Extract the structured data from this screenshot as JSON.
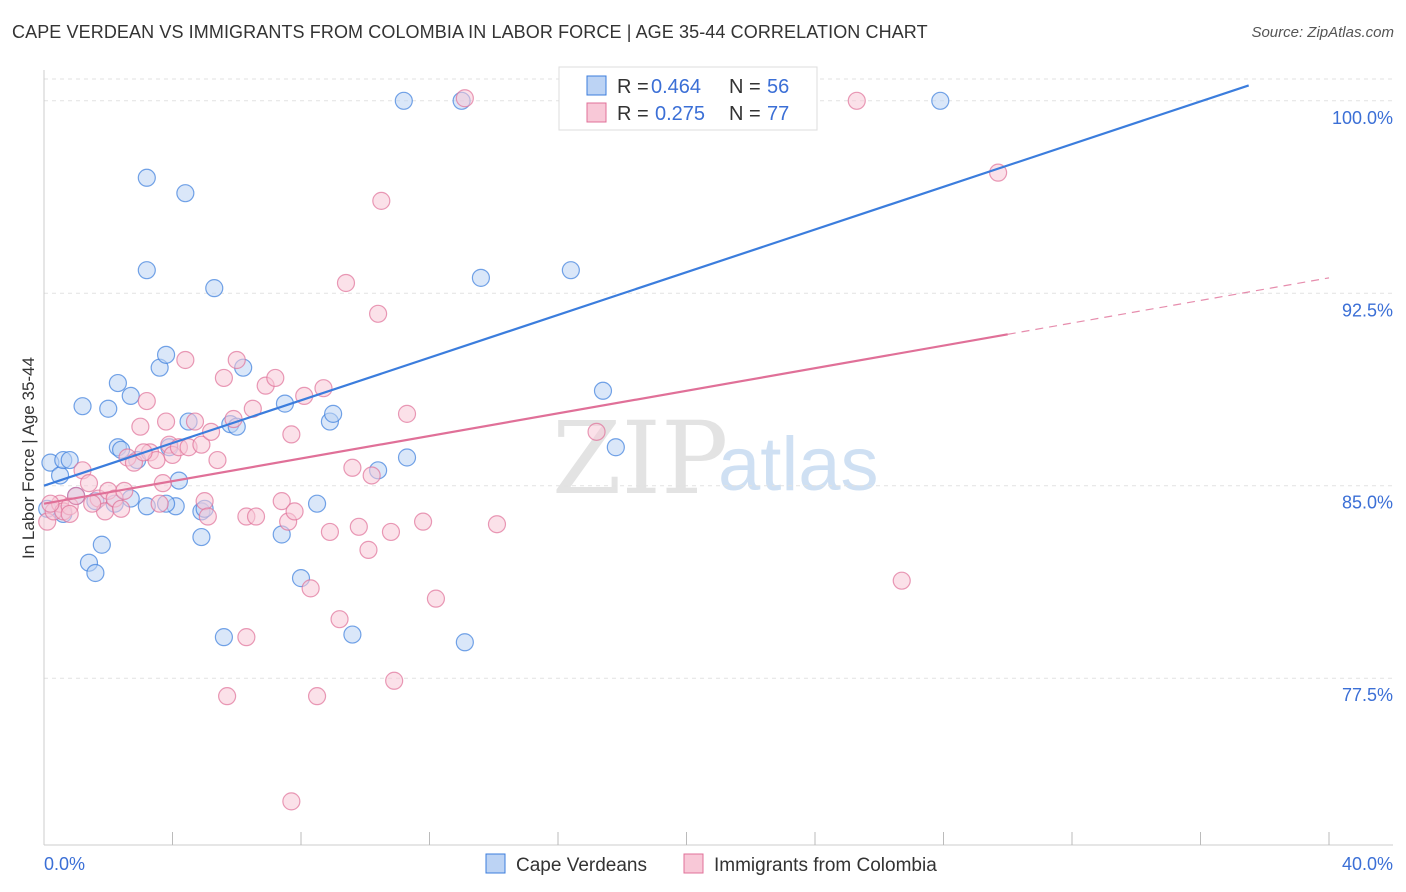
{
  "title": "CAPE VERDEAN VS IMMIGRANTS FROM COLOMBIA IN LABOR FORCE | AGE 35-44 CORRELATION CHART",
  "source": "Source: ZipAtlas.com",
  "watermark": {
    "zip": "ZIP",
    "atlas": "atlas"
  },
  "chart_data": {
    "type": "scatter",
    "title": "CAPE VERDEAN VS IMMIGRANTS FROM COLOMBIA IN LABOR FORCE | AGE 35-44 CORRELATION CHART",
    "xlabel": "",
    "ylabel": "In Labor Force | Age 35-44",
    "xlim": [
      0,
      40
    ],
    "ylim": [
      71.0,
      101.2
    ],
    "x_tick_labels": [
      "0.0%",
      "40.0%"
    ],
    "y_ticks": [
      77.5,
      85.0,
      92.5,
      100.0
    ],
    "y_tick_labels": [
      "77.5%",
      "85.0%",
      "92.5%",
      "100.0%"
    ],
    "grid": true,
    "legend_placement": "top-center",
    "colors": {
      "blue": "#3b7ddd",
      "pink": "#e07098",
      "blue_fill": "#bcd3f4",
      "pink_fill": "#f8c8d7"
    },
    "series": [
      {
        "name": "Cape Verdeans",
        "color": "#3b7ddd",
        "R": "0.464",
        "N": "56",
        "trend": {
          "x": [
            0.0,
            37.5
          ],
          "y": [
            85.0,
            100.6
          ],
          "dashed_to": null
        },
        "points": [
          [
            0.2,
            85.9
          ],
          [
            0.5,
            85.4
          ],
          [
            0.6,
            86.0
          ],
          [
            0.8,
            86.0
          ],
          [
            1.0,
            84.6
          ],
          [
            1.2,
            88.1
          ],
          [
            1.4,
            82.0
          ],
          [
            1.6,
            84.4
          ],
          [
            1.8,
            82.7
          ],
          [
            1.6,
            81.6
          ],
          [
            2.0,
            88.0
          ],
          [
            2.3,
            86.5
          ],
          [
            2.4,
            86.4
          ],
          [
            2.3,
            89.0
          ],
          [
            2.7,
            88.5
          ],
          [
            2.9,
            86.0
          ],
          [
            2.7,
            84.5
          ],
          [
            3.2,
            84.2
          ],
          [
            3.2,
            97.0
          ],
          [
            3.2,
            93.4
          ],
          [
            3.6,
            89.6
          ],
          [
            3.8,
            90.1
          ],
          [
            3.9,
            86.5
          ],
          [
            4.2,
            85.2
          ],
          [
            4.1,
            84.2
          ],
          [
            4.4,
            96.4
          ],
          [
            4.5,
            87.5
          ],
          [
            4.9,
            84.0
          ],
          [
            4.9,
            83.0
          ],
          [
            5.0,
            84.1
          ],
          [
            5.3,
            92.7
          ],
          [
            5.6,
            79.1
          ],
          [
            5.8,
            87.4
          ],
          [
            6.0,
            87.3
          ],
          [
            6.2,
            89.6
          ],
          [
            7.5,
            88.2
          ],
          [
            7.4,
            83.1
          ],
          [
            8.0,
            81.4
          ],
          [
            8.5,
            84.3
          ],
          [
            8.9,
            87.5
          ],
          [
            9.0,
            87.8
          ],
          [
            9.6,
            79.2
          ],
          [
            10.4,
            85.6
          ],
          [
            11.3,
            86.1
          ],
          [
            11.2,
            100.0
          ],
          [
            13.0,
            100.0
          ],
          [
            13.6,
            93.1
          ],
          [
            16.4,
            93.4
          ],
          [
            17.4,
            88.7
          ],
          [
            17.8,
            86.5
          ],
          [
            27.9,
            100.0
          ],
          [
            0.1,
            84.1
          ],
          [
            0.6,
            83.9
          ],
          [
            2.2,
            84.3
          ],
          [
            3.8,
            84.3
          ],
          [
            13.1,
            78.9
          ]
        ]
      },
      {
        "name": "Immigrants from Colombia",
        "color": "#e07098",
        "R": "0.275",
        "N": "77",
        "trend": {
          "x": [
            0.0,
            30.0
          ],
          "y": [
            84.3,
            90.9
          ],
          "dashed_to": {
            "x": 40.0,
            "y": 93.1
          }
        },
        "points": [
          [
            0.1,
            83.6
          ],
          [
            0.3,
            84.0
          ],
          [
            0.5,
            84.3
          ],
          [
            0.6,
            84.0
          ],
          [
            0.8,
            84.2
          ],
          [
            1.0,
            84.6
          ],
          [
            1.2,
            85.6
          ],
          [
            1.4,
            85.1
          ],
          [
            1.7,
            84.5
          ],
          [
            1.9,
            84.0
          ],
          [
            2.0,
            84.8
          ],
          [
            2.2,
            84.5
          ],
          [
            2.4,
            84.1
          ],
          [
            2.6,
            86.1
          ],
          [
            2.8,
            85.9
          ],
          [
            3.0,
            87.3
          ],
          [
            3.2,
            88.3
          ],
          [
            3.3,
            86.3
          ],
          [
            3.5,
            86.0
          ],
          [
            3.6,
            84.3
          ],
          [
            3.7,
            85.1
          ],
          [
            3.8,
            87.5
          ],
          [
            3.9,
            86.6
          ],
          [
            4.0,
            86.2
          ],
          [
            4.2,
            86.5
          ],
          [
            4.4,
            89.9
          ],
          [
            4.5,
            86.5
          ],
          [
            4.7,
            87.5
          ],
          [
            4.9,
            86.6
          ],
          [
            5.0,
            84.4
          ],
          [
            5.1,
            83.8
          ],
          [
            5.2,
            87.1
          ],
          [
            5.4,
            86.0
          ],
          [
            5.6,
            89.2
          ],
          [
            5.7,
            76.8
          ],
          [
            5.9,
            87.6
          ],
          [
            6.0,
            89.9
          ],
          [
            6.3,
            79.1
          ],
          [
            6.3,
            83.8
          ],
          [
            6.5,
            88.0
          ],
          [
            6.6,
            83.8
          ],
          [
            6.9,
            88.9
          ],
          [
            7.2,
            89.2
          ],
          [
            7.4,
            84.4
          ],
          [
            7.6,
            83.6
          ],
          [
            7.7,
            87.0
          ],
          [
            7.8,
            84.0
          ],
          [
            8.1,
            88.5
          ],
          [
            8.3,
            81.0
          ],
          [
            8.5,
            76.8
          ],
          [
            8.7,
            88.8
          ],
          [
            8.9,
            83.2
          ],
          [
            9.2,
            79.8
          ],
          [
            9.4,
            92.9
          ],
          [
            9.6,
            85.7
          ],
          [
            9.8,
            83.4
          ],
          [
            10.1,
            82.5
          ],
          [
            10.2,
            85.4
          ],
          [
            10.4,
            91.7
          ],
          [
            10.5,
            96.1
          ],
          [
            10.9,
            77.4
          ],
          [
            10.8,
            83.2
          ],
          [
            11.3,
            87.8
          ],
          [
            11.8,
            83.6
          ],
          [
            12.2,
            80.6
          ],
          [
            13.1,
            100.1
          ],
          [
            14.1,
            83.5
          ],
          [
            0.2,
            84.3
          ],
          [
            1.5,
            84.3
          ],
          [
            2.5,
            84.8
          ],
          [
            3.1,
            86.3
          ],
          [
            7.7,
            72.7
          ],
          [
            17.2,
            87.1
          ],
          [
            25.3,
            100.0
          ],
          [
            26.7,
            81.3
          ],
          [
            29.7,
            97.2
          ],
          [
            0.8,
            83.9
          ]
        ]
      }
    ]
  }
}
